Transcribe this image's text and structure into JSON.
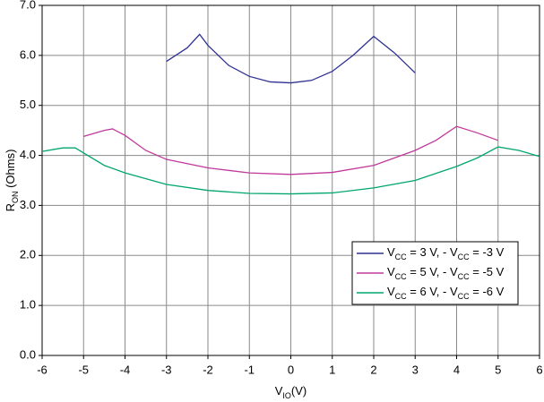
{
  "chart_data": {
    "type": "line",
    "x_label": [
      "V",
      "IO",
      "(V)"
    ],
    "y_label": [
      "R",
      "ON",
      " (Ohms)"
    ],
    "xlim": [
      -6,
      6
    ],
    "xticks": [
      -6,
      -5,
      -4,
      -3,
      -2,
      -1,
      0,
      1,
      2,
      3,
      4,
      5,
      6
    ],
    "ylim": [
      0,
      7
    ],
    "yticks": [
      {
        "value": 0,
        "label": "0.0"
      },
      {
        "value": 1,
        "label": "1.0"
      },
      {
        "value": 2,
        "label": "2.0"
      },
      {
        "value": 3,
        "label": "3.0"
      },
      {
        "value": 4,
        "label": "4.0"
      },
      {
        "value": 5,
        "label": "5.0"
      },
      {
        "value": 6,
        "label": "6.0"
      },
      {
        "value": 7,
        "label": "7.0"
      }
    ],
    "grid": true,
    "legend": "lower-right",
    "series": [
      {
        "name": [
          "V",
          "CC",
          " = 3 V, - V",
          "CC",
          " = -3 V"
        ],
        "color": "#2e3192",
        "x": [
          -3,
          -2.5,
          -2.2,
          -2,
          -1.5,
          -1,
          -0.5,
          0,
          0.5,
          1,
          1.5,
          2,
          2.5,
          3
        ],
        "values": [
          5.88,
          6.15,
          6.42,
          6.2,
          5.8,
          5.58,
          5.47,
          5.45,
          5.5,
          5.68,
          6.0,
          6.38,
          6.05,
          5.65
        ]
      },
      {
        "name": [
          "V",
          "CC",
          " = 5 V, - V",
          "CC",
          " = -5 V"
        ],
        "color": "#c0389b",
        "x": [
          -5,
          -4.5,
          -4.3,
          -4,
          -3.5,
          -3,
          -2,
          -1,
          0,
          1,
          2,
          3,
          3.5,
          4,
          4.5,
          5
        ],
        "values": [
          4.38,
          4.5,
          4.53,
          4.4,
          4.1,
          3.92,
          3.75,
          3.65,
          3.62,
          3.66,
          3.8,
          4.1,
          4.3,
          4.58,
          4.45,
          4.3
        ]
      },
      {
        "name": [
          "V",
          "CC",
          " = 6 V, - V",
          "CC",
          " = -6 V"
        ],
        "color": "#00a66e",
        "x": [
          -6,
          -5.5,
          -5.2,
          -5,
          -4.5,
          -4,
          -3,
          -2,
          -1,
          0,
          1,
          2,
          3,
          4,
          4.5,
          5,
          5.5,
          6
        ],
        "values": [
          4.08,
          4.15,
          4.15,
          4.05,
          3.8,
          3.65,
          3.42,
          3.3,
          3.24,
          3.23,
          3.25,
          3.35,
          3.5,
          3.78,
          3.95,
          4.17,
          4.1,
          3.98
        ]
      }
    ]
  }
}
